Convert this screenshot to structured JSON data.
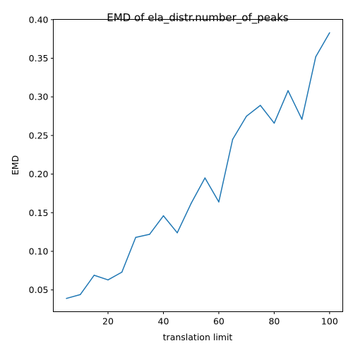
{
  "chart_data": {
    "type": "line",
    "title": "EMD of ela_distr.number_of_peaks",
    "xlabel": "translation limit",
    "ylabel": "EMD",
    "xlim": [
      0.25,
      104.75
    ],
    "ylim": [
      0.0218,
      0.4003
    ],
    "xticks": [
      20,
      40,
      60,
      80,
      100
    ],
    "yticks": [
      0.05,
      0.1,
      0.15,
      0.2,
      0.25,
      0.3,
      0.35,
      0.4
    ],
    "ytick_labels": [
      "0.05",
      "0.10",
      "0.15",
      "0.20",
      "0.25",
      "0.30",
      "0.35",
      "0.40"
    ],
    "grid": false,
    "series": [
      {
        "color": "#1f77b4",
        "x": [
          5,
          10,
          15,
          20,
          25,
          30,
          35,
          40,
          45,
          50,
          55,
          60,
          65,
          70,
          75,
          80,
          85,
          90,
          95,
          100
        ],
        "y": [
          0.039,
          0.044,
          0.069,
          0.063,
          0.073,
          0.118,
          0.122,
          0.146,
          0.124,
          0.162,
          0.195,
          0.164,
          0.245,
          0.275,
          0.289,
          0.266,
          0.308,
          0.271,
          0.352,
          0.383
        ]
      }
    ]
  }
}
